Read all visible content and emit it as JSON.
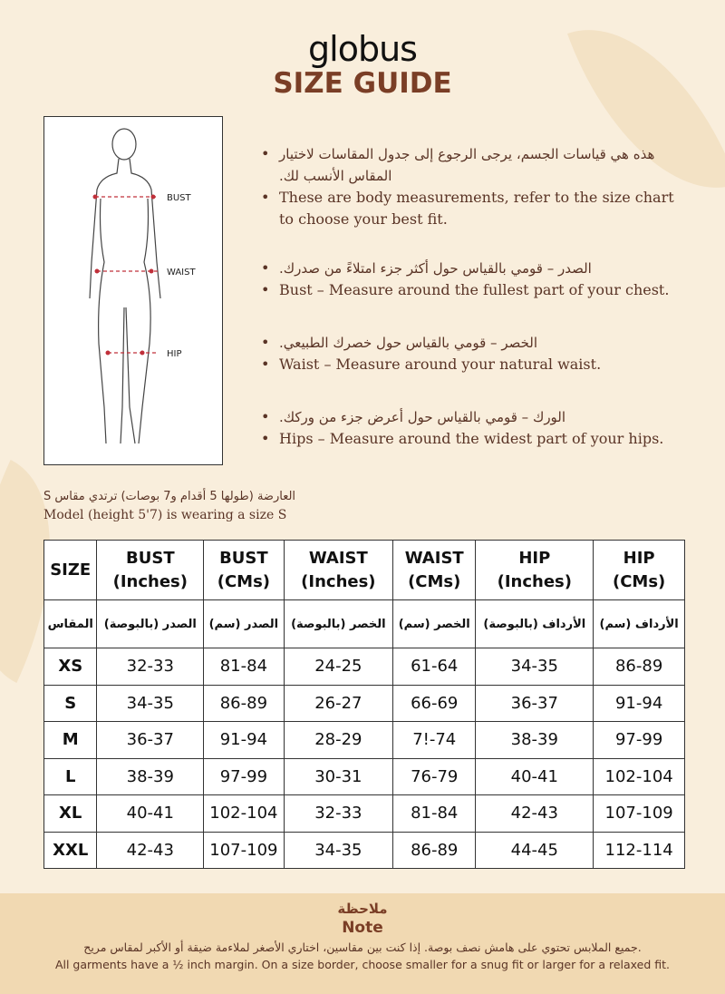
{
  "brand": "globus",
  "title": "SIZE GUIDE",
  "figure": {
    "labels": [
      "BUST",
      "WAIST",
      "HIP"
    ]
  },
  "bullets": [
    {
      "ar": "هذه هي قياسات الجسم، يرجى الرجوع إلى جدول المقاسات لاختيار المقاس الأنسب لك.",
      "en": "These are body measurements, refer to the size chart to choose your best fit."
    },
    {
      "ar": "الصدر – قومي بالقياس حول أكثر جزء امتلاءً من صدرك.",
      "en": "Bust – Measure around the fullest part of your chest."
    },
    {
      "ar": "الخصر – قومي بالقياس حول خصرك الطبيعي.",
      "en": "Waist – Measure around your natural waist."
    },
    {
      "ar": "الورك – قومي بالقياس حول أعرض جزء من وركك.",
      "en": "Hips – Measure around the widest part of your hips."
    }
  ],
  "model": {
    "ar": "العارضة (طولها 5 أقدام و7 بوصات) ترتدي مقاس S",
    "en": "Model (height 5'7) is wearing a size S"
  },
  "table": {
    "headers": [
      [
        "SIZE",
        ""
      ],
      [
        "BUST",
        "(Inches)"
      ],
      [
        "BUST",
        "(CMs)"
      ],
      [
        "WAIST",
        "(Inches)"
      ],
      [
        "WAIST",
        "(CMs)"
      ],
      [
        "HIP",
        "(Inches)"
      ],
      [
        "HIP",
        "(CMs)"
      ]
    ],
    "headers_ar": [
      "المقاس",
      "الصدر (بالبوصة)",
      "الصدر (سم)",
      "الخصر (بالبوصة)",
      "الخصر (سم)",
      "الأرداف (بالبوصة)",
      "الأرداف (سم)"
    ],
    "rows": [
      [
        "XS",
        "32-33",
        "81-84",
        "24-25",
        "61-64",
        "34-35",
        "86-89"
      ],
      [
        "S",
        "34-35",
        "86-89",
        "26-27",
        "66-69",
        "36-37",
        "91-94"
      ],
      [
        "M",
        "36-37",
        "91-94",
        "28-29",
        "7!-74",
        "38-39",
        "97-99"
      ],
      [
        "L",
        "38-39",
        "97-99",
        "30-31",
        "76-79",
        "40-41",
        "102-104"
      ],
      [
        "XL",
        "40-41",
        "102-104",
        "32-33",
        "81-84",
        "42-43",
        "107-109"
      ],
      [
        "XXL",
        "42-43",
        "107-109",
        "34-35",
        "86-89",
        "44-45",
        "112-114"
      ]
    ]
  },
  "note": {
    "title_ar": "ملاحظة",
    "title": "Note",
    "text_ar": "جميع الملابس تحتوي على هامش نصف بوصة. إذا كنت بين مقاسين، اختاري الأصغر لملاءمة ضيقة أو الأكبر لمقاس مريح.",
    "text": "All garments have a ½ inch margin. On a size border, choose smaller for a snug fit or larger for a relaxed fit."
  }
}
